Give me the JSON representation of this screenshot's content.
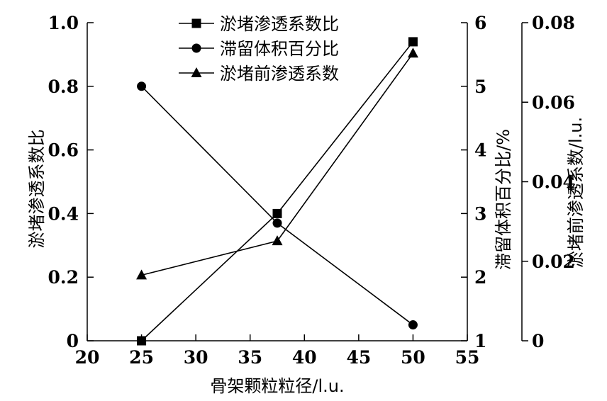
{
  "chart_data": {
    "type": "line",
    "xlabel": "骨架颗粒粒径/l.u.",
    "x_ticks": [
      "20",
      "25",
      "30",
      "35",
      "40",
      "45",
      "50",
      "55"
    ],
    "xlim": [
      20,
      55
    ],
    "axes": {
      "left": {
        "label": "淤堵渗透系数比",
        "ticks": [
          "0",
          "0.2",
          "0.4",
          "0.6",
          "0.8",
          "1.0"
        ],
        "ylim": [
          0,
          1
        ]
      },
      "right1": {
        "label": "滞留体积百分比/%",
        "ticks": [
          "1",
          "2",
          "3",
          "4",
          "5",
          "6"
        ],
        "ylim": [
          1,
          6
        ]
      },
      "right2": {
        "label": "淤堵前渗透系数/l.u.",
        "ticks": [
          "0",
          "0.02",
          "0.04",
          "0.06",
          "0.08"
        ],
        "ylim": [
          0,
          0.08
        ]
      }
    },
    "legend_position": "top-center",
    "series": [
      {
        "name": "淤堵渗透系数比",
        "axis": "left",
        "marker": "square",
        "x": [
          25,
          37.5,
          50
        ],
        "values": [
          0,
          0.4,
          0.94
        ]
      },
      {
        "name": "滞留体积百分比",
        "axis": "right1",
        "marker": "circle",
        "x": [
          25,
          37.5,
          50
        ],
        "values": [
          5.0,
          2.85,
          1.25
        ]
      },
      {
        "name": "淤堵前渗透系数",
        "axis": "right2",
        "marker": "triangle",
        "x": [
          25,
          37.5,
          50
        ],
        "values": [
          0.0165,
          0.0251,
          0.0723
        ]
      }
    ]
  }
}
